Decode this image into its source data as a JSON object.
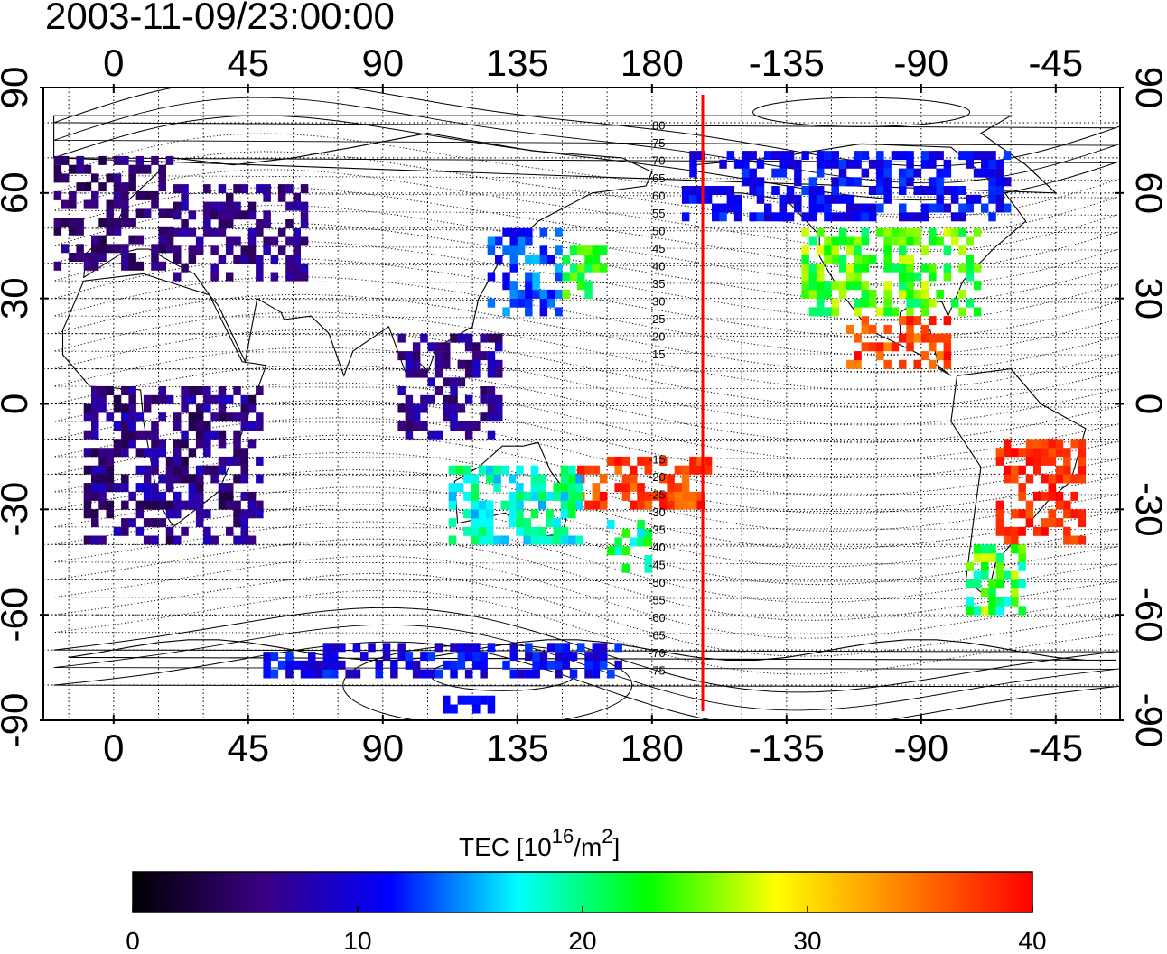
{
  "title": "2003-11-09/23:00:00",
  "map": {
    "lon_ticks_top": [
      "0",
      "45",
      "90",
      "135",
      "180",
      "-135",
      "-90",
      "-45"
    ],
    "lon_ticks_bottom": [
      "0",
      "45",
      "90",
      "135",
      "180",
      "-135",
      "-90",
      "-45"
    ],
    "lat_ticks_left": [
      "90",
      "60",
      "30",
      "0",
      "-30",
      "-60",
      "-90"
    ],
    "lat_ticks_right": [
      "90",
      "60",
      "30",
      "0",
      "-30",
      "-60",
      "-90"
    ],
    "contour_labels": [
      "80",
      "75",
      "70",
      "65",
      "60",
      "55",
      "50",
      "45",
      "40",
      "35",
      "30",
      "25",
      "20",
      "15",
      "-15",
      "-20",
      "-25",
      "-30",
      "-35",
      "-40",
      "-45",
      "-50",
      "-55",
      "-60",
      "-65",
      "-70",
      "-75"
    ],
    "terminator_color": "#ff0000"
  },
  "colorbar": {
    "label": "TEC [10",
    "label_sup": "16",
    "label_unit": "/m",
    "label_sup2": "2",
    "label_close": "]",
    "ticks": [
      "0",
      "10",
      "20",
      "30",
      "40"
    ],
    "range": [
      0,
      40
    ],
    "colors": [
      "#000000",
      "#3a0080",
      "#0000ff",
      "#00ffff",
      "#00ff00",
      "#ffff00",
      "#ff8000",
      "#ff0000"
    ]
  }
}
